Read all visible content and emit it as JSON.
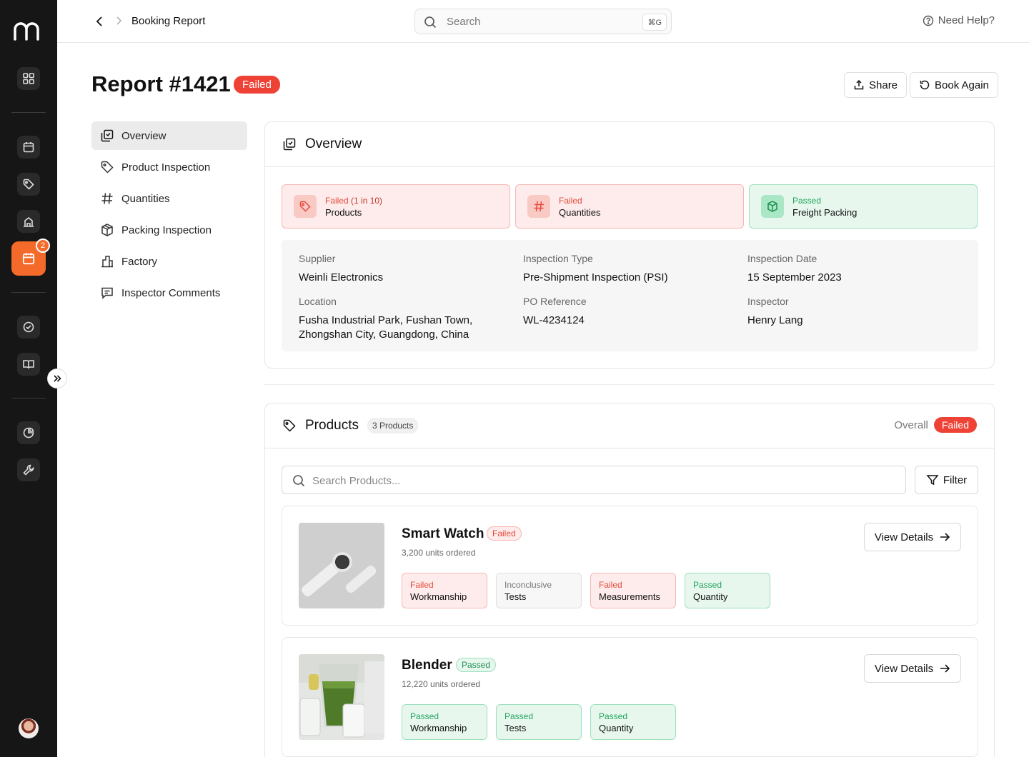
{
  "topbar": {
    "breadcrumb": "Booking Report",
    "search_placeholder": "Search",
    "search_shortcut": "⌘G",
    "help_label": "Need Help?"
  },
  "rail": {
    "notification_count": "2",
    "accent": "#f46a2a"
  },
  "header": {
    "title": "Report #1421",
    "status": "Failed",
    "share_label": "Share",
    "book_again_label": "Book Again"
  },
  "nav": {
    "items": [
      {
        "label": "Overview",
        "icon": "overview-icon"
      },
      {
        "label": "Product Inspection",
        "icon": "tag-icon"
      },
      {
        "label": "Quantities",
        "icon": "hash-icon"
      },
      {
        "label": "Packing Inspection",
        "icon": "box-icon"
      },
      {
        "label": "Factory",
        "icon": "factory-icon"
      },
      {
        "label": "Inspector Comments",
        "icon": "comment-icon"
      }
    ]
  },
  "overview": {
    "title": "Overview",
    "stats": [
      {
        "status": "Failed",
        "extra": "(1 in 10)",
        "label": "Products"
      },
      {
        "status": "Failed",
        "label": "Quantities"
      },
      {
        "status": "Passed",
        "label": "Freight Packing"
      }
    ],
    "details": {
      "supplier_label": "Supplier",
      "supplier": "Weinli Electronics",
      "type_label": "Inspection Type",
      "type": "Pre-Shipment Inspection (PSI)",
      "date_label": "Inspection Date",
      "date": "15 September 2023",
      "location_label": "Location",
      "location_line1": "Fusha Industrial Park, Fushan Town,",
      "location_line2": "Zhongshan City, Guangdong, China",
      "po_label": "PO Reference",
      "po": "WL-4234124",
      "inspector_label": "Inspector",
      "inspector": "Henry Lang"
    }
  },
  "products": {
    "title": "Products",
    "count": "3 Products",
    "overall_label": "Overall",
    "overall_status": "Failed",
    "search_placeholder": "Search Products...",
    "filter_label": "Filter",
    "view_details_label": "View Details",
    "items": [
      {
        "name": "Smart Watch",
        "status": "Failed",
        "units": "3,200 units ordered",
        "chips": [
          {
            "status": "Failed",
            "label": "Workmanship"
          },
          {
            "status": "Inconclusive",
            "label": "Tests"
          },
          {
            "status": "Failed",
            "label": "Measurements"
          },
          {
            "status": "Passed",
            "label": "Quantity"
          }
        ]
      },
      {
        "name": "Blender",
        "status": "Passed",
        "units": "12,220 units ordered",
        "chips": [
          {
            "status": "Passed",
            "label": "Workmanship"
          },
          {
            "status": "Passed",
            "label": "Tests"
          },
          {
            "status": "Passed",
            "label": "Quantity"
          }
        ]
      }
    ]
  }
}
